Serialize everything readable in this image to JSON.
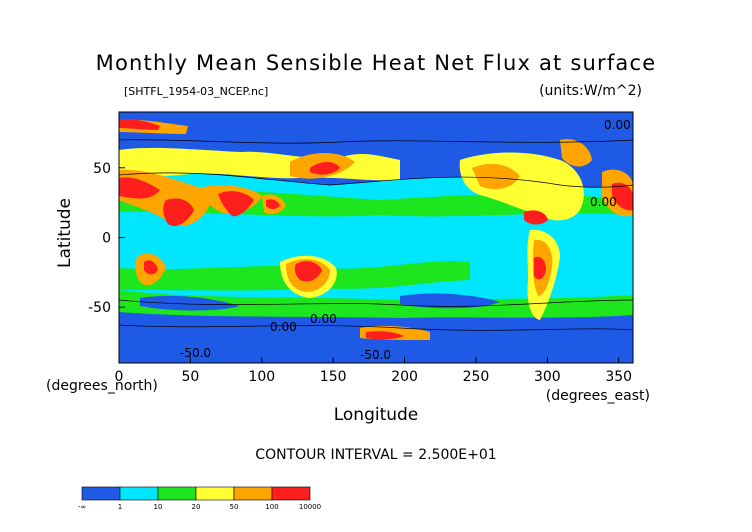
{
  "chart_data": {
    "type": "heatmap",
    "title": "Monthly Mean Sensible Heat Net Flux at surface",
    "file_label": "[SHTFL_1954-03_NCEP.nc]",
    "units_label": "(units:W/m^2)",
    "xlabel": "Longitude",
    "ylabel": "Latitude",
    "x_unit_label": "(degrees_east)",
    "y_unit_label": "(degrees_north)",
    "xlim": [
      0,
      360
    ],
    "ylim": [
      -90,
      90
    ],
    "x_ticks": [
      0,
      50,
      100,
      150,
      200,
      250,
      300,
      350
    ],
    "y_ticks": [
      50,
      0,
      -50
    ],
    "contour_interval_label": "CONTOUR INTERVAL = 2.500E+01",
    "contour_labels": [
      "-50.0",
      "-50.0",
      "0.00",
      "0.00",
      "0.00",
      "0.00"
    ],
    "colorbar": {
      "boundaries": [
        "-∞",
        "1",
        "10",
        "20",
        "50",
        "100",
        "10000"
      ],
      "colors": [
        "#1e5ae6",
        "#00e6ff",
        "#1ee61e",
        "#ffff32",
        "#ffa500",
        "#ff1e1e"
      ]
    }
  }
}
